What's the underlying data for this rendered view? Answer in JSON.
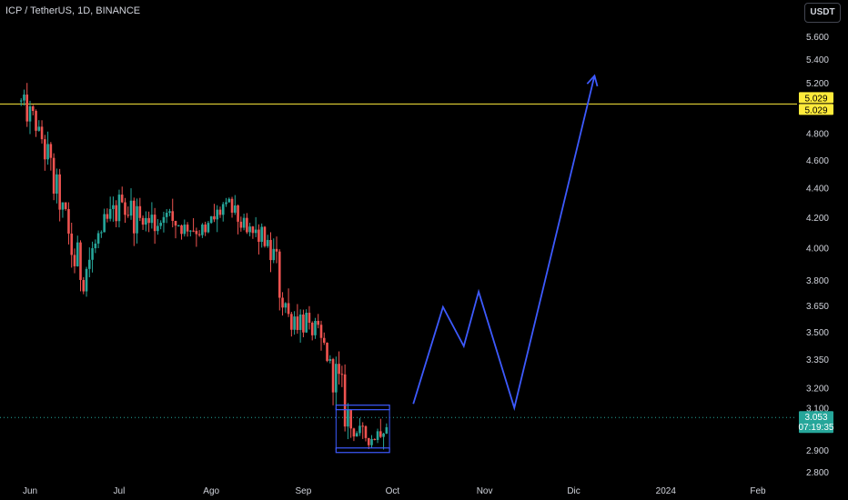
{
  "header": {
    "title": "ICP / TetherUS, 1D, BINANCE",
    "currency_button": "USDT"
  },
  "colors": {
    "background": "#000000",
    "up": "#26a69a",
    "down": "#ef5350",
    "level": "#ffeb3b",
    "projection": "#3d5afe",
    "current": "#26a69a",
    "axis_text": "#d1d4dc"
  },
  "chart_data": {
    "type": "candlestick",
    "symbol": "ICP / TetherUS",
    "interval": "1D",
    "exchange": "BINANCE",
    "y_scale": "log",
    "ylim": [
      2.76,
      5.85
    ],
    "y_ticks": [
      "5.600",
      "5.400",
      "5.200",
      "5.029",
      "4.800",
      "4.600",
      "4.400",
      "4.200",
      "4.000",
      "3.800",
      "3.650",
      "3.500",
      "3.350",
      "3.200",
      "3.100",
      "3.053",
      "2.900",
      "2.800"
    ],
    "y_tick_values": [
      5.6,
      5.4,
      5.2,
      5.029,
      4.8,
      4.6,
      4.4,
      4.2,
      4.0,
      3.8,
      3.65,
      3.5,
      3.35,
      3.2,
      3.1,
      3.053,
      2.9,
      2.8
    ],
    "x_ticks": [
      "Jun",
      "Jul",
      "Ago",
      "Sep",
      "Oct",
      "Nov",
      "Dic",
      "2024",
      "Feb"
    ],
    "x_tick_dates": [
      "2023-06-01",
      "2023-07-01",
      "2023-08-01",
      "2023-09-01",
      "2023-10-01",
      "2023-11-01",
      "2023-12-01",
      "2024-01-01",
      "2024-02-01"
    ],
    "ohlc_weekly_approx": [
      {
        "week": "2023-05-29",
        "open": 5.05,
        "high": 5.2,
        "low": 4.7,
        "close": 4.85
      },
      {
        "week": "2023-06-05",
        "open": 4.85,
        "high": 4.9,
        "low": 4.15,
        "close": 4.25
      },
      {
        "week": "2023-06-12",
        "open": 4.25,
        "high": 4.3,
        "low": 3.45,
        "close": 3.8
      },
      {
        "week": "2023-06-19",
        "open": 3.8,
        "high": 4.2,
        "low": 3.7,
        "close": 4.1
      },
      {
        "week": "2023-06-26",
        "open": 4.1,
        "high": 4.45,
        "low": 3.95,
        "close": 4.3
      },
      {
        "week": "2023-07-03",
        "open": 4.3,
        "high": 4.4,
        "low": 3.85,
        "close": 4.15
      },
      {
        "week": "2023-07-10",
        "open": 4.15,
        "high": 4.55,
        "low": 4.0,
        "close": 4.2
      },
      {
        "week": "2023-07-17",
        "open": 4.2,
        "high": 4.4,
        "low": 4.0,
        "close": 4.15
      },
      {
        "week": "2023-07-24",
        "open": 4.15,
        "high": 4.3,
        "low": 4.0,
        "close": 4.1
      },
      {
        "week": "2023-07-31",
        "open": 4.1,
        "high": 4.4,
        "low": 4.0,
        "close": 4.3
      },
      {
        "week": "2023-08-07",
        "open": 4.3,
        "high": 4.35,
        "low": 4.05,
        "close": 4.1
      },
      {
        "week": "2023-08-14",
        "open": 4.1,
        "high": 4.2,
        "low": 3.85,
        "close": 4.05
      },
      {
        "week": "2023-08-21",
        "open": 4.05,
        "high": 4.1,
        "low": 3.3,
        "close": 3.6
      },
      {
        "week": "2023-08-28",
        "open": 3.6,
        "high": 3.75,
        "low": 3.35,
        "close": 3.55
      },
      {
        "week": "2023-09-04",
        "open": 3.55,
        "high": 3.6,
        "low": 3.25,
        "close": 3.35
      },
      {
        "week": "2023-09-11",
        "open": 3.35,
        "high": 3.45,
        "low": 2.9,
        "close": 3.0
      },
      {
        "week": "2023-09-18",
        "open": 3.0,
        "high": 3.05,
        "low": 2.87,
        "close": 2.95
      },
      {
        "week": "2023-09-25",
        "open": 2.95,
        "high": 3.08,
        "low": 2.9,
        "close": 3.053
      }
    ],
    "horizontal_level": {
      "value": 5.029,
      "label": "5.029"
    },
    "current_price": {
      "value": 3.053,
      "label": "3.053",
      "countdown": "07:19:35"
    },
    "range_box": {
      "top": 3.1,
      "bottom": 2.9,
      "start": "2023-09-12",
      "end": "2023-09-30"
    },
    "projection_path": [
      {
        "date": "2023-10-08",
        "price": 3.12
      },
      {
        "date": "2023-10-18",
        "price": 3.64
      },
      {
        "date": "2023-10-25",
        "price": 3.42
      },
      {
        "date": "2023-10-30",
        "price": 3.73
      },
      {
        "date": "2023-11-11",
        "price": 3.1
      },
      {
        "date": "2023-12-08",
        "price": 5.26
      }
    ]
  }
}
